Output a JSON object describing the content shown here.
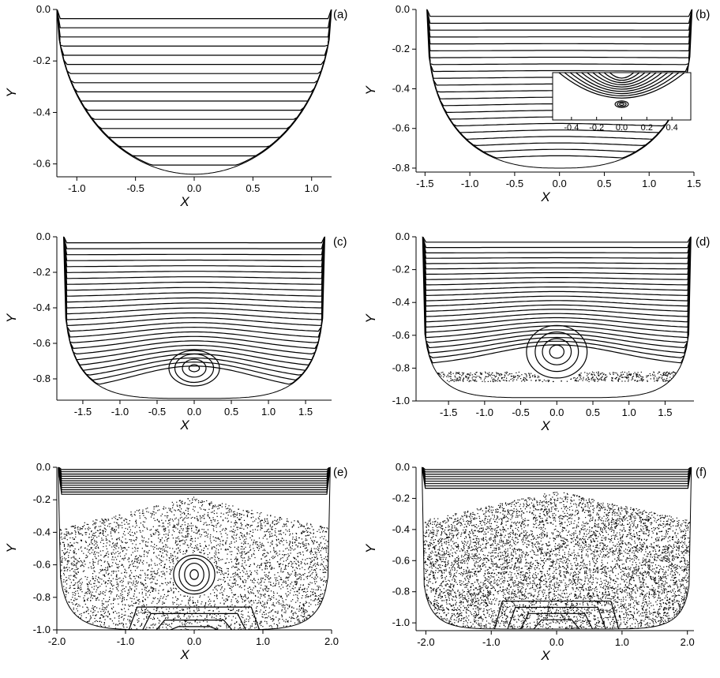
{
  "chart_data": [
    {
      "panel": "(a)",
      "type": "line",
      "title": "",
      "xlabel": "X",
      "ylabel": "Y",
      "xlim": [
        -1.17,
        1.17
      ],
      "ylim": [
        -0.65,
        0.0
      ],
      "xticks": [
        "-1.0",
        "-0.5",
        "0.0",
        "0.5",
        "1.0"
      ],
      "xtick_values": [
        -1.0,
        -0.5,
        0.0,
        0.5,
        1.0
      ],
      "yticks": [
        "0.0",
        "-0.2",
        "-0.4",
        "-0.6"
      ],
      "ytick_values": [
        0.0,
        -0.2,
        -0.4,
        -0.6
      ],
      "boundary": {
        "half_width": 1.17,
        "depth": 0.64,
        "exponent": 2.0
      },
      "streamlines": {
        "levels": 17,
        "hump": 0.0,
        "inner_vortex": null
      },
      "chaotic_sea": null
    },
    {
      "panel": "(b)",
      "type": "line",
      "title": "",
      "xlabel": "X",
      "ylabel": "Y",
      "xlim": [
        -1.6,
        1.5
      ],
      "ylim": [
        -0.82,
        0.0
      ],
      "xticks": [
        "-1.5",
        "-1.0",
        "-0.5",
        "0.0",
        "0.5",
        "1.0",
        "1.5"
      ],
      "xtick_values": [
        -1.5,
        -1.0,
        -0.5,
        0.0,
        0.5,
        1.0,
        1.5
      ],
      "yticks": [
        "0.0",
        "-0.2",
        "-0.4",
        "-0.6",
        "-0.8"
      ],
      "ytick_values": [
        0.0,
        -0.2,
        -0.4,
        -0.6,
        -0.8
      ],
      "boundary": {
        "half_width": 1.48,
        "depth": 0.8,
        "exponent": 2.6
      },
      "streamlines": {
        "levels": 22,
        "hump": 0.03,
        "inner_vortex": null
      },
      "chaotic_sea": null,
      "inset": {
        "xlim": [
          -0.55,
          0.55
        ],
        "xticks": [
          "-0.4",
          "-0.2",
          "0.0",
          "0.2",
          "0.4"
        ],
        "xtick_values": [
          -0.4,
          -0.2,
          0.0,
          0.2,
          0.4
        ]
      }
    },
    {
      "panel": "(c)",
      "type": "line",
      "title": "",
      "xlabel": "X",
      "ylabel": "Y",
      "xlim": [
        -1.85,
        1.85
      ],
      "ylim": [
        -0.92,
        0.0
      ],
      "xticks": [
        "-1.5",
        "-1.0",
        "-0.5",
        "0.0",
        "0.5",
        "1.0",
        "1.5"
      ],
      "xtick_values": [
        -1.5,
        -1.0,
        -0.5,
        0.0,
        0.5,
        1.0,
        1.5
      ],
      "yticks": [
        "0.0",
        "-0.2",
        "-0.4",
        "-0.6",
        "-0.8"
      ],
      "ytick_values": [
        0.0,
        -0.2,
        -0.4,
        -0.6,
        -0.8
      ],
      "boundary": {
        "half_width": 1.76,
        "depth": 0.91,
        "exponent": 4.0
      },
      "streamlines": {
        "levels": 26,
        "hump": 0.16,
        "inner_vortex": {
          "x": 0.0,
          "y": -0.74,
          "rx": [
            0.07,
            0.16,
            0.26,
            0.34
          ],
          "ry": [
            0.02,
            0.05,
            0.08,
            0.1
          ]
        }
      },
      "chaotic_sea": null
    },
    {
      "panel": "(d)",
      "type": "line",
      "title": "",
      "xlabel": "X",
      "ylabel": "Y",
      "xlim": [
        -1.95,
        1.9
      ],
      "ylim": [
        -1.0,
        0.0
      ],
      "xticks": [
        "-1.5",
        "-1.0",
        "-0.5",
        "0.0",
        "0.5",
        "1.0",
        "1.5"
      ],
      "xtick_values": [
        -1.5,
        -1.0,
        -0.5,
        0.0,
        0.5,
        1.0,
        1.5
      ],
      "yticks": [
        "0.0",
        "-0.2",
        "-0.4",
        "-0.6",
        "-0.8",
        "-1.0"
      ],
      "ytick_values": [
        0.0,
        -0.2,
        -0.4,
        -0.6,
        -0.8,
        -1.0
      ],
      "boundary": {
        "half_width": 1.86,
        "depth": 0.98,
        "exponent": 5.0
      },
      "streamlines": {
        "levels": 24,
        "hump": 0.2,
        "inner_vortex": {
          "x": 0.0,
          "y": -0.7,
          "rx": [
            0.1,
            0.2,
            0.3,
            0.42
          ],
          "ry": [
            0.04,
            0.08,
            0.12,
            0.16
          ]
        }
      },
      "chaotic_sea": {
        "density": 700,
        "ymin": -0.88,
        "ymax": -0.82
      }
    },
    {
      "panel": "(e)",
      "type": "line",
      "title": "",
      "xlabel": "X",
      "ylabel": "Y",
      "xlim": [
        -2.0,
        2.0
      ],
      "ylim": [
        -1.0,
        0.0
      ],
      "xticks": [
        "-2.0",
        "-1.0",
        "0.0",
        "1.0",
        "2.0"
      ],
      "xtick_values": [
        -2.0,
        -1.0,
        0.0,
        1.0,
        2.0
      ],
      "yticks": [
        "0.0",
        "-0.2",
        "-0.4",
        "-0.6",
        "-0.8",
        "-1.0"
      ],
      "ytick_values": [
        0.0,
        -0.2,
        -0.4,
        -0.6,
        -0.8,
        -1.0
      ],
      "boundary": {
        "half_width": 1.98,
        "depth": 1.0,
        "exponent": 6.0
      },
      "streamlines": {
        "levels": 12,
        "hump": 0.0,
        "inner_vortex": {
          "x": 0.0,
          "y": -0.66,
          "rx": [
            0.06,
            0.14,
            0.22,
            0.3
          ],
          "ry": [
            0.03,
            0.07,
            0.1,
            0.12
          ]
        }
      },
      "chaotic_sea": {
        "density": 4500,
        "ymin": -1.0,
        "ymax": -0.18
      }
    },
    {
      "panel": "(f)",
      "type": "line",
      "title": "",
      "xlabel": "X",
      "ylabel": "Y",
      "xlim": [
        -2.15,
        2.1
      ],
      "ylim": [
        -1.05,
        0.0
      ],
      "xticks": [
        "-2.0",
        "-1.0",
        "0.0",
        "1.0",
        "2.0"
      ],
      "xtick_values": [
        -2.0,
        -1.0,
        0.0,
        1.0,
        2.0
      ],
      "yticks": [
        "0.0",
        "-0.2",
        "-0.4",
        "-0.6",
        "-0.8",
        "-1.0"
      ],
      "ytick_values": [
        0.0,
        -0.2,
        -0.4,
        -0.6,
        -0.8,
        -1.0
      ],
      "boundary": {
        "half_width": 2.06,
        "depth": 1.04,
        "exponent": 7.0
      },
      "streamlines": {
        "levels": 9,
        "hump": 0.0,
        "inner_vortex": null
      },
      "chaotic_sea": {
        "density": 7000,
        "ymin": -1.04,
        "ymax": -0.15
      }
    }
  ]
}
